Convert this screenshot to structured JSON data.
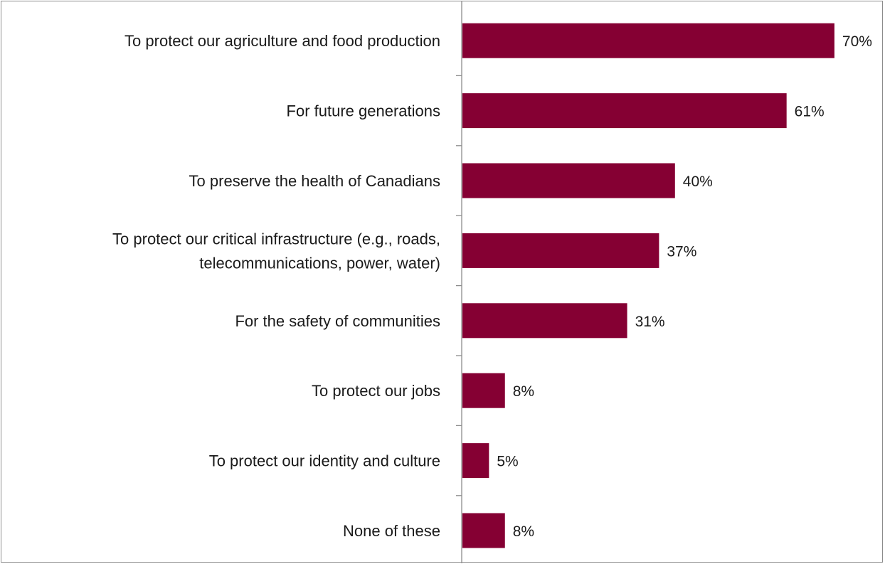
{
  "chart_data": {
    "type": "bar",
    "orientation": "horizontal",
    "categories": [
      "To protect our agriculture and food production",
      "For future generations",
      "To preserve the health of Canadians",
      "To protect our critical infrastructure (e.g., roads, telecommunications, power, water)",
      "For the safety of communities",
      "To protect our jobs",
      "To protect our identity and culture",
      "None of these"
    ],
    "category_lines": [
      [
        "To protect our agriculture and food production"
      ],
      [
        "For future generations"
      ],
      [
        "To preserve the health of Canadians"
      ],
      [
        "To protect our critical infrastructure (e.g., roads,",
        "telecommunications, power, water)"
      ],
      [
        "For the safety of communities"
      ],
      [
        "To protect our jobs"
      ],
      [
        "To protect our identity and culture"
      ],
      [
        "None of these"
      ]
    ],
    "values": [
      70,
      61,
      40,
      37,
      31,
      8,
      5,
      8
    ],
    "value_labels": [
      "70%",
      "61%",
      "40%",
      "37%",
      "31%",
      "8%",
      "5%",
      "8%"
    ],
    "xlim": [
      0,
      100
    ],
    "grid": false,
    "colors": {
      "bar": "#850033",
      "axis": "#8c8c8c",
      "text": "#1a1a1a"
    }
  }
}
